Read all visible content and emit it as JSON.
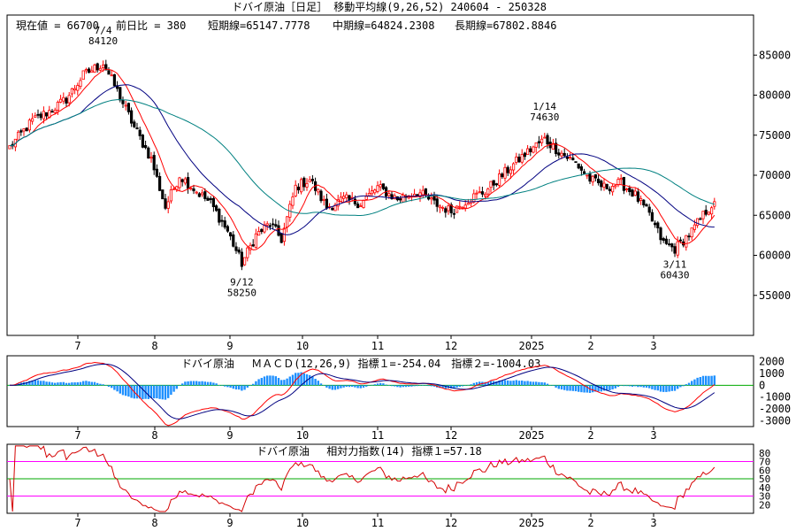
{
  "header": {
    "title": "ドバイ原油［日足］ 移動平均線(9,26,52) 240604 - 250328",
    "current": "現在値 = 66700",
    "change": "前日比 = 380",
    "short_ma": "短期線=65147.7778",
    "mid_ma": "中期線=64824.2308",
    "long_ma": "長期線=67802.8846"
  },
  "x_labels": [
    "7",
    "8",
    "9",
    "10",
    "11",
    "12",
    "2025",
    "2",
    "3"
  ],
  "annotations": [
    {
      "date": "7/4",
      "value": "84120"
    },
    {
      "date": "9/12",
      "value": "58250"
    },
    {
      "date": "1/14",
      "value": "74630"
    },
    {
      "date": "3/11",
      "value": "60430"
    }
  ],
  "macd_title": "ドバイ原油　 ＭＡＣＤ(12,26,9) 指標１=-254.04　指標２=-1004.03",
  "rsi_title": "ドバイ原油　 相対力指数(14) 指標１=57.18",
  "colors": {
    "up": "#ff0000",
    "down": "#000000",
    "short": "#ff0000",
    "mid": "#000080",
    "long": "#008080",
    "macd_bar": "#1e90ff",
    "rsi_line": "#d40000",
    "rsi_hi": "#ff00ff",
    "rsi_mid": "#00aa00"
  },
  "chart_data": [
    {
      "type": "candlestick",
      "title": "ドバイ原油［日足］ 移動平均線(9,26,52) 240604 - 250328",
      "ylim": [
        50000,
        90000
      ],
      "yticks": [
        55000,
        60000,
        65000,
        70000,
        75000,
        80000,
        85000
      ],
      "ytick_labels": [
        "55000",
        "60000",
        "65000",
        "70000",
        "75000",
        "80000",
        "85000"
      ],
      "x_labels": [
        "7",
        "8",
        "9",
        "10",
        "11",
        "12",
        "2025",
        "2",
        "3"
      ],
      "close_path": [
        {
          "d": 0,
          "v": 73500
        },
        {
          "d": 8,
          "v": 76800
        },
        {
          "d": 14,
          "v": 78000
        },
        {
          "d": 20,
          "v": 79500
        },
        {
          "d": 26,
          "v": 82500
        },
        {
          "d": 33,
          "v": 84000
        },
        {
          "d": 38,
          "v": 80500
        },
        {
          "d": 44,
          "v": 76000
        },
        {
          "d": 50,
          "v": 72000
        },
        {
          "d": 55,
          "v": 66000
        },
        {
          "d": 60,
          "v": 70000
        },
        {
          "d": 66,
          "v": 68000
        },
        {
          "d": 71,
          "v": 66500
        },
        {
          "d": 77,
          "v": 63000
        },
        {
          "d": 82,
          "v": 59000
        },
        {
          "d": 87,
          "v": 62500
        },
        {
          "d": 92,
          "v": 64000
        },
        {
          "d": 96,
          "v": 62000
        },
        {
          "d": 101,
          "v": 68500
        },
        {
          "d": 106,
          "v": 69500
        },
        {
          "d": 112,
          "v": 66000
        },
        {
          "d": 118,
          "v": 67000
        },
        {
          "d": 124,
          "v": 66500
        },
        {
          "d": 130,
          "v": 68500
        },
        {
          "d": 137,
          "v": 67000
        },
        {
          "d": 144,
          "v": 68000
        },
        {
          "d": 150,
          "v": 66500
        },
        {
          "d": 156,
          "v": 65500
        },
        {
          "d": 162,
          "v": 67000
        },
        {
          "d": 168,
          "v": 68000
        },
        {
          "d": 174,
          "v": 70000
        },
        {
          "d": 180,
          "v": 72000
        },
        {
          "d": 185,
          "v": 73500
        },
        {
          "d": 189,
          "v": 74500
        },
        {
          "d": 194,
          "v": 73000
        },
        {
          "d": 200,
          "v": 71500
        },
        {
          "d": 205,
          "v": 69500
        },
        {
          "d": 210,
          "v": 68500
        },
        {
          "d": 216,
          "v": 69000
        },
        {
          "d": 221,
          "v": 67500
        },
        {
          "d": 226,
          "v": 65000
        },
        {
          "d": 231,
          "v": 61500
        },
        {
          "d": 235,
          "v": 60800
        },
        {
          "d": 241,
          "v": 63000
        },
        {
          "d": 246,
          "v": 65500
        },
        {
          "d": 249,
          "v": 66700
        }
      ],
      "annotations": [
        {
          "date": "7/4",
          "value": 84120,
          "d": 33
        },
        {
          "date": "9/12",
          "value": 58250,
          "d": 82
        },
        {
          "date": "1/14",
          "value": 74630,
          "d": 189
        },
        {
          "date": "3/11",
          "value": 60430,
          "d": 235
        }
      ],
      "series": [
        {
          "name": "短期線",
          "period": 9,
          "last": 65147.7778
        },
        {
          "name": "中期線",
          "period": 26,
          "last": 64824.2308
        },
        {
          "name": "長期線",
          "period": 52,
          "last": 67802.8846
        }
      ]
    },
    {
      "type": "macd",
      "title": "ドバイ原油　 ＭＡＣＤ(12,26,9) 指標１=-254.04　指標２=-1004.03",
      "ylim": [
        -3500,
        2500
      ],
      "yticks": [
        2000,
        1000,
        0,
        -1000,
        -2000,
        -3000
      ],
      "ytick_labels": [
        "2000",
        "1000",
        "0",
        "-1000",
        "-2000",
        "-3000"
      ],
      "last": {
        "指標１": -254.04,
        "指標２": -1004.03
      }
    },
    {
      "type": "rsi",
      "title": "ドバイ原油　 相対力指数(14) 指標１=57.18",
      "ylim": [
        10,
        90
      ],
      "yticks": [
        80,
        70,
        60,
        50,
        40,
        30,
        20
      ],
      "ytick_labels": [
        "80",
        "70",
        "60",
        "50",
        "40",
        "30",
        "20"
      ],
      "ref_lines": [
        70,
        50,
        30
      ],
      "last": 57.18
    }
  ]
}
